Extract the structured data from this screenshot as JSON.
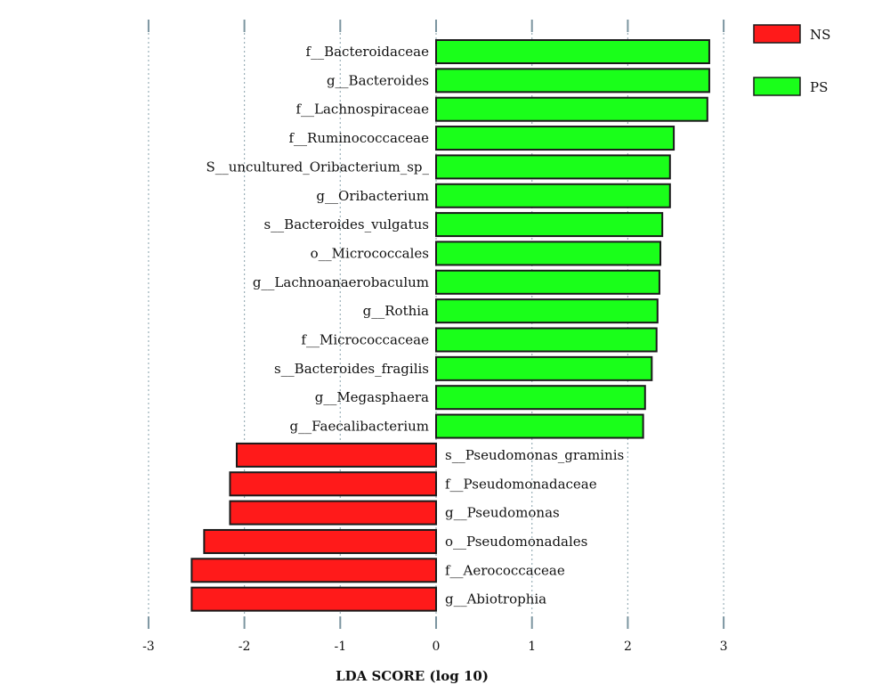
{
  "chart_data": {
    "type": "bar",
    "orientation": "horizontal",
    "xlabel": "LDA SCORE (log 10)",
    "xlim": [
      -3,
      3
    ],
    "xticks": [
      "-3",
      "-2",
      "-1",
      "0",
      "1",
      "2",
      "3"
    ],
    "grid": "vertical dotted",
    "legend_position": "top-right",
    "groups": [
      {
        "name": "NS",
        "color": "#ff1a1a"
      },
      {
        "name": "PS",
        "color": "#1aff1a"
      }
    ],
    "bars": [
      {
        "label": "f__Bacteroidaceae",
        "value": 2.85,
        "group": "PS"
      },
      {
        "label": "g__Bacteroides",
        "value": 2.85,
        "group": "PS"
      },
      {
        "label": "f__Lachnospiraceae",
        "value": 2.83,
        "group": "PS"
      },
      {
        "label": "f__Ruminococcaceae",
        "value": 2.48,
        "group": "PS"
      },
      {
        "label": "S__uncultured_Oribacterium_sp_",
        "value": 2.44,
        "group": "PS"
      },
      {
        "label": "g__Oribacterium",
        "value": 2.44,
        "group": "PS"
      },
      {
        "label": "s__Bacteroides_vulgatus",
        "value": 2.36,
        "group": "PS"
      },
      {
        "label": "o__Micrococcales",
        "value": 2.34,
        "group": "PS"
      },
      {
        "label": "g__Lachnoanaerobaculum",
        "value": 2.33,
        "group": "PS"
      },
      {
        "label": "g__Rothia",
        "value": 2.31,
        "group": "PS"
      },
      {
        "label": "f__Micrococcaceae",
        "value": 2.3,
        "group": "PS"
      },
      {
        "label": "s__Bacteroides_fragilis",
        "value": 2.25,
        "group": "PS"
      },
      {
        "label": "g__Megasphaera",
        "value": 2.18,
        "group": "PS"
      },
      {
        "label": "g__Faecalibacterium",
        "value": 2.16,
        "group": "PS"
      },
      {
        "label": "s__Pseudomonas_graminis",
        "value": -2.08,
        "group": "NS"
      },
      {
        "label": "f__Pseudomonadaceae",
        "value": -2.15,
        "group": "NS"
      },
      {
        "label": "g__Pseudomonas",
        "value": -2.15,
        "group": "NS"
      },
      {
        "label": "o__Pseudomonadales",
        "value": -2.42,
        "group": "NS"
      },
      {
        "label": "f__Aerococcaceae",
        "value": -2.55,
        "group": "NS"
      },
      {
        "label": "g__Abiotrophia",
        "value": -2.55,
        "group": "NS"
      }
    ]
  }
}
